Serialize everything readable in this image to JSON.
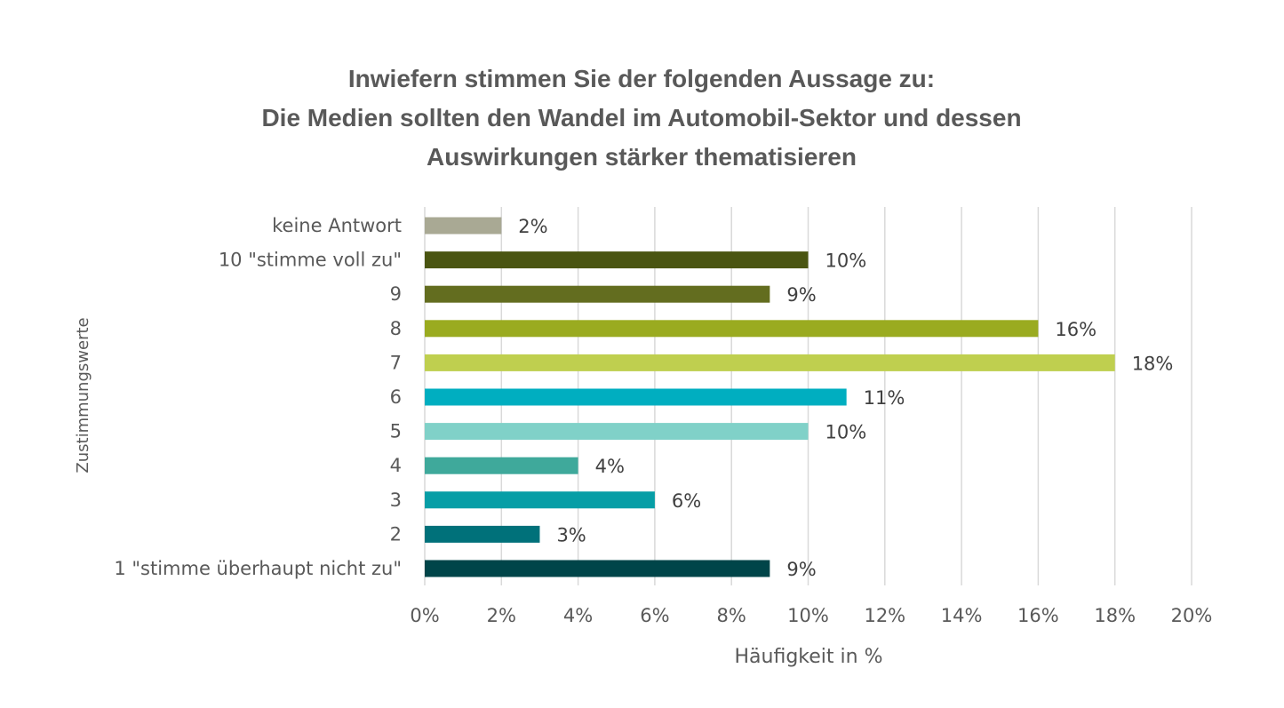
{
  "chart_data": {
    "type": "bar",
    "orientation": "horizontal",
    "title_lines": [
      "Inwiefern stimmen Sie der folgenden Aussage zu:",
      "Die Medien sollten den Wandel im Automobil-Sektor und dessen",
      "Auswirkungen stärker thematisieren"
    ],
    "xlabel": "Häufigkeit in %",
    "ylabel": "Zustimmungswerte",
    "xlim": [
      0,
      20
    ],
    "x_ticks": [
      0,
      2,
      4,
      6,
      8,
      10,
      12,
      14,
      16,
      18,
      20
    ],
    "tick_suffix": "%",
    "grid": "vertical",
    "categories": [
      "keine Antwort",
      "10 \"stimme voll zu\"",
      "9",
      "8",
      "7",
      "6",
      "5",
      "4",
      "3",
      "2",
      "1 \"stimme überhaupt nicht zu\""
    ],
    "values": [
      2,
      10,
      9,
      16,
      18,
      11,
      10,
      4,
      6,
      3,
      9
    ],
    "data_labels": [
      "2%",
      "10%",
      "9%",
      "16%",
      "18%",
      "11%",
      "10%",
      "4%",
      "6%",
      "3%",
      "9%"
    ],
    "colors": [
      "#a9a994",
      "#4a5511",
      "#636d1f",
      "#9aab20",
      "#bfcf4f",
      "#00aec0",
      "#80d1c8",
      "#3fa99b",
      "#079ea6",
      "#00717a",
      "#004549"
    ]
  }
}
